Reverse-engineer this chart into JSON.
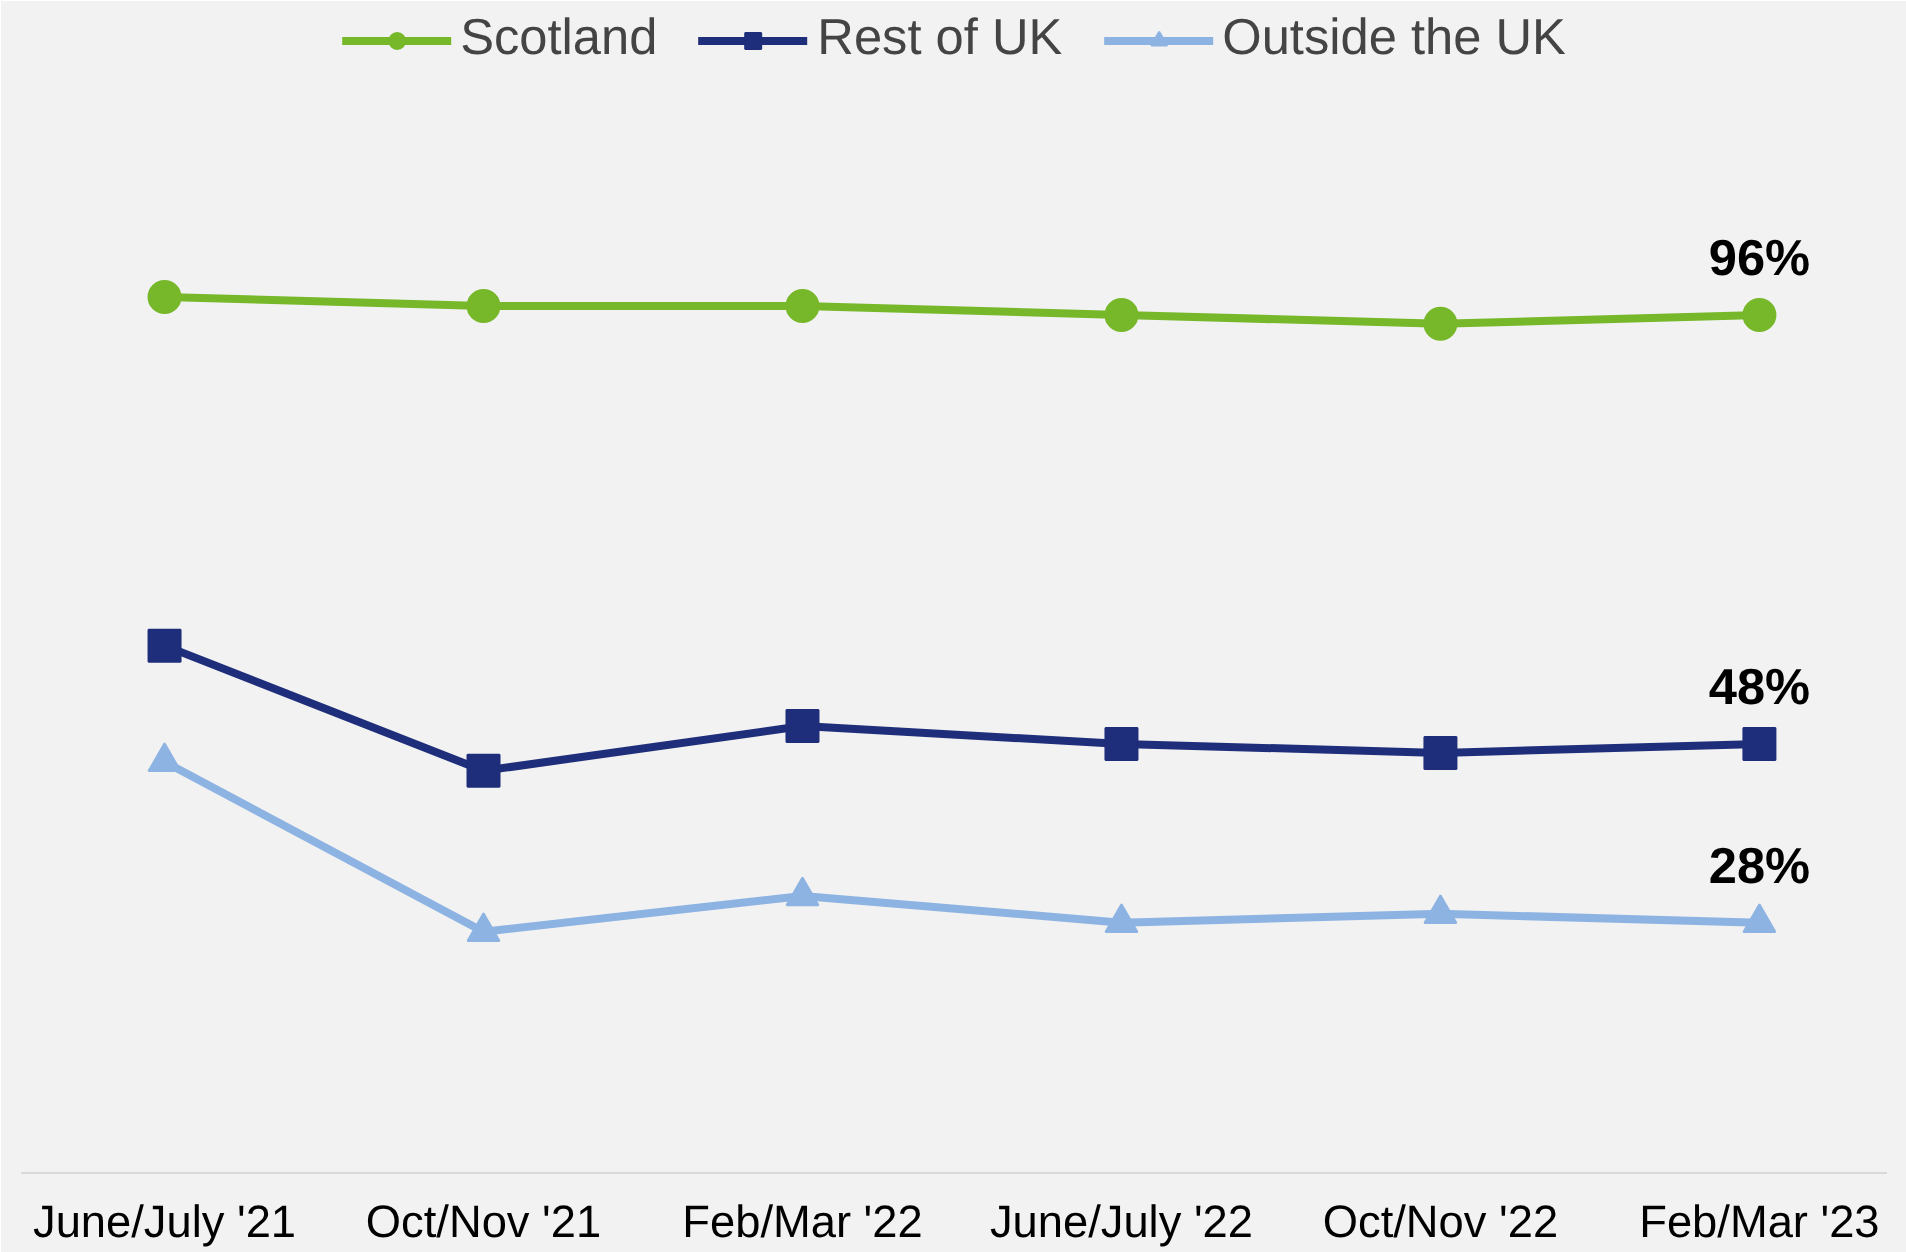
{
  "chart_data": {
    "type": "line",
    "categories": [
      "June/July '21",
      "Oct/Nov '21",
      "Feb/Mar '22",
      "June/July '22",
      "Oct/Nov '22",
      "Feb/Mar '23"
    ],
    "ylim": [
      0,
      130
    ],
    "legend": "top",
    "grid": false,
    "line_style": "solid",
    "series": [
      {
        "name": "Scotland",
        "color": "#77b82a",
        "marker": "circle",
        "values": [
          98,
          97,
          97,
          96,
          95,
          96
        ],
        "value_labels": [
          null,
          null,
          null,
          null,
          null,
          "96%"
        ]
      },
      {
        "name": "Rest of UK",
        "color": "#1f2e7a",
        "marker": "square",
        "values": [
          59,
          45,
          50,
          48,
          47,
          48
        ],
        "value_labels": [
          null,
          null,
          null,
          null,
          null,
          "48%"
        ]
      },
      {
        "name": "Outside the UK",
        "color": "#8db3e2",
        "marker": "triangle",
        "values": [
          46,
          27,
          31,
          28,
          29,
          28
        ],
        "value_labels": [
          null,
          null,
          null,
          null,
          null,
          "28%"
        ]
      }
    ]
  }
}
